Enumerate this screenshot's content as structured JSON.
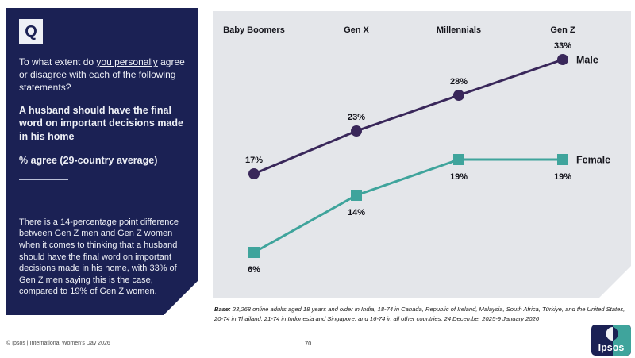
{
  "question": {
    "badge": "Q",
    "intro_pre": "To what extent do ",
    "intro_underlined": "you personally",
    "intro_post": " agree or disagree with each of the following statements?",
    "statement": "A husband should have the final word on important decisions made in his home",
    "measure": "% agree (29-country average)",
    "insight": "There is a 14-percentage point difference between Gen Z men and Gen Z women when it comes to thinking that a husband should have the final word on important decisions made in his home, with 33% of Gen Z men saying this is the case, compared to 19% of Gen Z women."
  },
  "chart_data": {
    "type": "line",
    "categories": [
      "Baby Boomers",
      "Gen X",
      "Millennials",
      "Gen Z"
    ],
    "series": [
      {
        "name": "Male",
        "values": [
          17,
          23,
          28,
          33
        ],
        "color": "#39275a",
        "marker": "circle"
      },
      {
        "name": "Female",
        "values": [
          6,
          14,
          19,
          19
        ],
        "color": "#3fa49c",
        "marker": "square"
      }
    ],
    "value_suffix": "%",
    "ylim": [
      0,
      40
    ],
    "grid": false,
    "legend_position": "right-of-last-point",
    "background": "#e4e6ea"
  },
  "base_note": {
    "label": "Base: ",
    "text": "23,268 online adults aged 18 years and older in India, 18-74 in Canada, Republic of Ireland, Malaysia, South Africa, Türkiye, and the United States, 20-74 in Thailand, 21-74 in Indonesia and Singapore, and 16-74 in all other countries, 24 December 2025-9 January 2026"
  },
  "footer": {
    "copyright": "© Ipsos | International Women's Day 2026",
    "page_number": "70",
    "logo_text": "Ipsos"
  },
  "colors": {
    "panel_navy": "#1b2154",
    "chart_background": "#e4e6ea",
    "male_purple": "#39275a",
    "female_teal": "#3fa49c",
    "logo_teal": "#3fa49c",
    "logo_navy": "#1b2154"
  }
}
